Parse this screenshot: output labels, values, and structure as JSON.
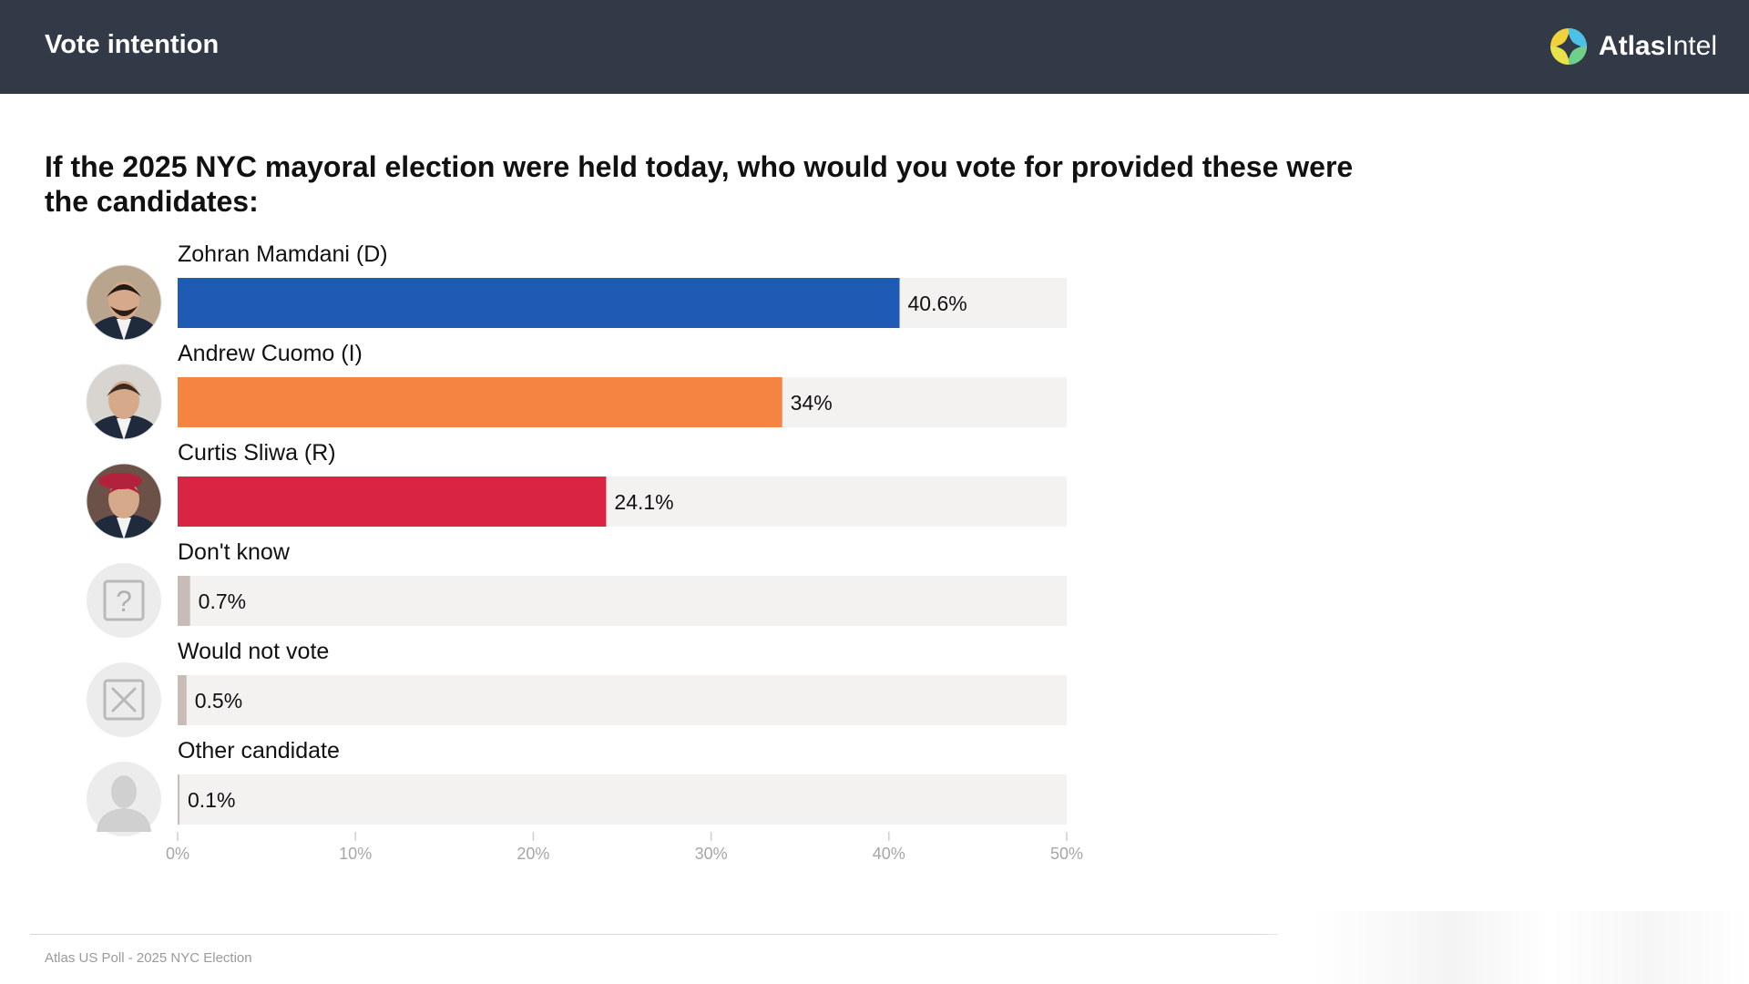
{
  "header": {
    "title": "Vote intention",
    "brand_bold": "Atlas",
    "brand_light": "Intel"
  },
  "question": "If the 2025 NYC mayoral election were held today, who would you vote for provided these were the candidates:",
  "footer": {
    "text": "Atlas US Poll - 2025 NYC Election"
  },
  "colors": {
    "header_bg": "#333a47",
    "track": "#f3f2f1",
    "mamdani": "#1f5bb5",
    "cuomo": "#f58442",
    "sliwa": "#d92444",
    "other": "#c8bcb6"
  },
  "chart_data": {
    "type": "bar",
    "orientation": "horizontal",
    "categories": [
      "Zohran Mamdani (D)",
      "Andrew Cuomo (I)",
      "Curtis Sliwa (R)",
      "Don't know",
      "Would not vote",
      "Other candidate"
    ],
    "values": [
      40.6,
      34,
      24.1,
      0.7,
      0.5,
      0.1
    ],
    "value_labels": [
      "40.6%",
      "34%",
      "24.1%",
      "0.7%",
      "0.5%",
      "0.1%"
    ],
    "bar_colors": [
      "#1f5bb5",
      "#f58442",
      "#d92444",
      "#c8bcb6",
      "#c8bcb6",
      "#c8bcb6"
    ],
    "icons": [
      "candidate-photo-mamdani",
      "candidate-photo-cuomo",
      "candidate-photo-sliwa",
      "question-mark-icon",
      "x-box-icon",
      "person-silhouette-icon"
    ],
    "xlim": [
      0,
      50
    ],
    "xticks": [
      0,
      10,
      20,
      30,
      40,
      50
    ],
    "xtick_labels": [
      "0%",
      "10%",
      "20%",
      "30%",
      "40%",
      "50%"
    ],
    "grid": false,
    "legend": "none"
  }
}
